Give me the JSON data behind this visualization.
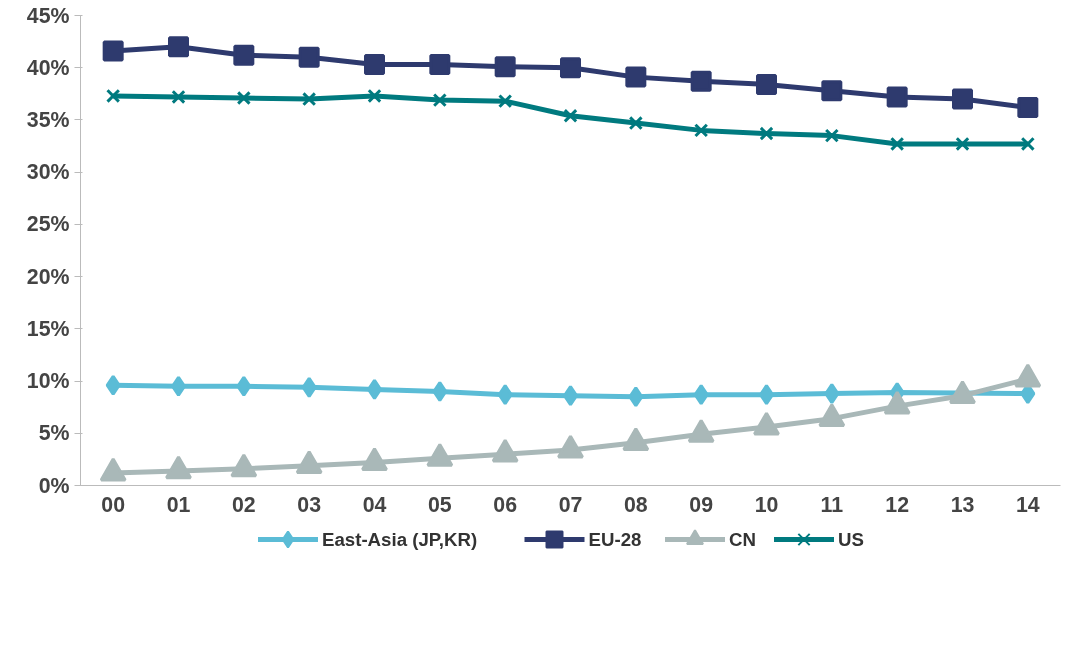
{
  "chart_data": {
    "type": "line",
    "categories": [
      "00",
      "01",
      "02",
      "03",
      "04",
      "05",
      "06",
      "07",
      "08",
      "09",
      "10",
      "11",
      "12",
      "13",
      "14"
    ],
    "ylim": [
      0,
      45
    ],
    "yticks": [
      {
        "value": 0,
        "label": "0%"
      },
      {
        "value": 5,
        "label": "5%"
      },
      {
        "value": 10,
        "label": "10%"
      },
      {
        "value": 15,
        "label": "15%"
      },
      {
        "value": 20,
        "label": "20%"
      },
      {
        "value": 25,
        "label": "25%"
      },
      {
        "value": 30,
        "label": "30%"
      },
      {
        "value": 35,
        "label": "35%"
      },
      {
        "value": 40,
        "label": "40%"
      },
      {
        "value": 45,
        "label": "45%"
      }
    ],
    "grid": false,
    "legend": "bottom",
    "line_style": "solid",
    "series": [
      {
        "name": "East-Asia (JP,KR)",
        "color": "#5bbcd6",
        "marker": "diamond",
        "values": [
          9.6,
          9.5,
          9.5,
          9.4,
          9.2,
          9.0,
          8.7,
          8.6,
          8.5,
          8.7,
          8.7,
          8.8,
          8.9,
          null,
          8.8
        ]
      },
      {
        "name": "EU-28",
        "color": "#2e3a6e",
        "marker": "square",
        "values": [
          41.6,
          42.0,
          41.2,
          41.0,
          40.3,
          40.3,
          40.1,
          40.0,
          39.1,
          38.7,
          38.4,
          37.8,
          37.2,
          37.0,
          36.2
        ]
      },
      {
        "name": "CN",
        "color": "#a9b8b8",
        "marker": "triangle",
        "values": [
          1.2,
          1.4,
          1.6,
          1.9,
          2.2,
          2.6,
          3.0,
          3.4,
          4.1,
          4.9,
          5.6,
          6.4,
          7.6,
          8.6,
          10.2
        ]
      },
      {
        "name": "US",
        "color": "#007a7f",
        "marker": "cross",
        "values": [
          37.3,
          37.2,
          37.1,
          37.0,
          37.3,
          36.9,
          36.8,
          35.4,
          34.7,
          34.0,
          33.7,
          33.5,
          32.7,
          32.7,
          32.7
        ]
      }
    ]
  }
}
